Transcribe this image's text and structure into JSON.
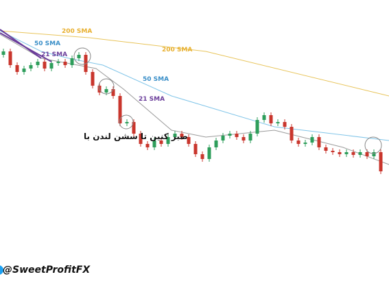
{
  "chart_data": {
    "type": "candlestick",
    "xlim": [
      -0.5,
      56.2
    ],
    "ylim": [
      0,
      410
    ],
    "up_color": "#2e9e5b",
    "down_color": "#c9362d",
    "open": [
      330,
      335,
      315,
      305,
      310,
      315,
      320,
      310,
      318,
      320,
      315,
      325,
      330,
      305,
      285,
      275,
      280,
      270,
      230,
      232,
      215,
      200,
      195,
      205,
      200,
      210,
      215,
      210,
      200,
      185,
      178,
      195,
      205,
      212,
      215,
      210,
      205,
      215,
      235,
      242,
      230,
      232,
      225,
      205,
      200,
      202,
      210,
      195,
      190,
      188,
      185,
      188,
      184,
      188,
      182,
      188
    ],
    "high": [
      339,
      339,
      319,
      314,
      319,
      324,
      324,
      322,
      324,
      324,
      329,
      334,
      334,
      309,
      289,
      284,
      284,
      274,
      236,
      236,
      219,
      204,
      209,
      209,
      214,
      219,
      219,
      214,
      204,
      189,
      199,
      209,
      216,
      219,
      219,
      214,
      219,
      239,
      246,
      246,
      236,
      236,
      229,
      209,
      206,
      214,
      214,
      199,
      194,
      192,
      192,
      192,
      192,
      192,
      192,
      192
    ],
    "low": [
      326,
      311,
      301,
      301,
      306,
      311,
      306,
      306,
      314,
      311,
      311,
      321,
      301,
      281,
      271,
      271,
      266,
      226,
      226,
      211,
      196,
      191,
      191,
      196,
      196,
      206,
      206,
      196,
      181,
      174,
      174,
      191,
      201,
      208,
      206,
      201,
      201,
      211,
      231,
      226,
      226,
      221,
      201,
      196,
      196,
      198,
      191,
      186,
      184,
      181,
      181,
      180,
      180,
      178,
      178,
      156
    ],
    "close": [
      335,
      315,
      305,
      310,
      315,
      320,
      310,
      318,
      320,
      315,
      325,
      330,
      305,
      285,
      275,
      280,
      270,
      230,
      232,
      215,
      200,
      195,
      205,
      200,
      210,
      215,
      210,
      200,
      185,
      178,
      195,
      205,
      212,
      215,
      210,
      205,
      215,
      235,
      242,
      230,
      232,
      225,
      205,
      200,
      202,
      210,
      195,
      190,
      188,
      185,
      188,
      184,
      188,
      182,
      188,
      160
    ],
    "series": [
      {
        "name": "200 SMA",
        "color": "#e8c45a",
        "x": [
          -0.5,
          12.5,
          29.5,
          56.2
        ],
        "values": [
          365,
          355,
          335,
          270
        ]
      },
      {
        "name": "50 SMA",
        "color": "#7fc4e8",
        "x": [
          -0.5,
          5.5,
          9.5,
          14.5,
          24.5,
          39.5,
          56.2
        ],
        "values": [
          365,
          335,
          325,
          315,
          270,
          225,
          205
        ]
      },
      {
        "name": "21 SMA",
        "color": "#9a9a9a",
        "x": [
          -0.5,
          5.5,
          13.5,
          17.5,
          24.5,
          29.5,
          39.5,
          49.5,
          56.2
        ],
        "values": [
          360,
          325,
          310,
          280,
          220,
          210,
          220,
          195,
          170
        ]
      }
    ],
    "annotation": "صبر کنین تا سشن لندن با",
    "watermark": "@SweetProfitFX"
  }
}
